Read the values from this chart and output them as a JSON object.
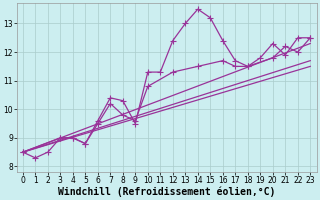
{
  "xlabel": "Windchill (Refroidissement éolien,°C)",
  "bg_color": "#cceef0",
  "line_color": "#993399",
  "grid_color": "#aacccc",
  "xlim": [
    -0.5,
    23.5
  ],
  "ylim": [
    7.8,
    13.7
  ],
  "xticks": [
    0,
    1,
    2,
    3,
    4,
    5,
    6,
    7,
    8,
    9,
    10,
    11,
    12,
    13,
    14,
    15,
    16,
    17,
    18,
    19,
    20,
    21,
    22,
    23
  ],
  "yticks": [
    8,
    9,
    10,
    11,
    12,
    13
  ],
  "series1_x": [
    0,
    1,
    2,
    3,
    4,
    5,
    6,
    7,
    8,
    9,
    10,
    11,
    12,
    13,
    14,
    15,
    16,
    17,
    18,
    19,
    20,
    21,
    22,
    23
  ],
  "series1_y": [
    8.5,
    8.3,
    8.5,
    9.0,
    9.0,
    8.8,
    9.6,
    10.4,
    10.3,
    9.5,
    11.3,
    11.3,
    12.4,
    13.0,
    13.5,
    13.2,
    12.4,
    11.7,
    11.5,
    11.8,
    12.3,
    11.9,
    12.5,
    12.5
  ],
  "series2_x": [
    0,
    3,
    4,
    5,
    6,
    7,
    8,
    9,
    10,
    12,
    14,
    16,
    17,
    18,
    20,
    21,
    22,
    23
  ],
  "series2_y": [
    8.5,
    9.0,
    9.0,
    8.8,
    9.5,
    10.2,
    9.8,
    9.6,
    10.8,
    11.3,
    11.5,
    11.7,
    11.5,
    11.5,
    11.8,
    12.2,
    12.0,
    12.5
  ],
  "line1_x": [
    0,
    23
  ],
  "line1_y": [
    8.5,
    11.5
  ],
  "line2_x": [
    0,
    23
  ],
  "line2_y": [
    8.5,
    11.7
  ],
  "line3_x": [
    0,
    23
  ],
  "line3_y": [
    8.5,
    12.3
  ],
  "tick_fontsize": 5.5,
  "label_fontsize": 7.0
}
